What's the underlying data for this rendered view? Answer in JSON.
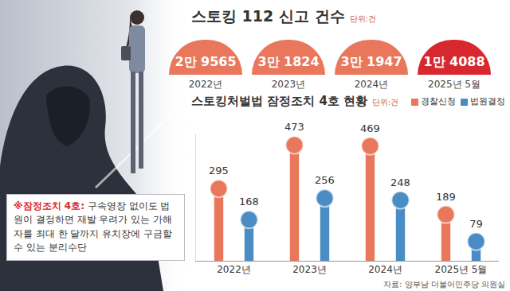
{
  "report_counts": {
    "title": "스토킹 112 신고 건수",
    "subtitle": "단위:건",
    "items": [
      {
        "year": "2022년",
        "count": "2만 9565",
        "color": "#e8775c"
      },
      {
        "year": "2023년",
        "count": "3만 1824",
        "color": "#e8775c"
      },
      {
        "year": "2024년",
        "count": "3만 1947",
        "color": "#e8775c"
      },
      {
        "year": "2025년 5월",
        "count": "1만 4088",
        "color": "#d7282f"
      }
    ]
  },
  "chart_data": {
    "type": "bar",
    "title": "스토킹처벌법 잠정조치 4호 현황",
    "subtitle": "단위:건",
    "categories": [
      "2022년",
      "2023년",
      "2024년",
      "2025년 5월"
    ],
    "series": [
      {
        "name": "경찰신청",
        "color": "#e8775c",
        "values": [
          295,
          473,
          469,
          189
        ]
      },
      {
        "name": "법원결정",
        "color": "#4a8cc4",
        "values": [
          168,
          256,
          248,
          79
        ]
      }
    ],
    "ylim": [
      0,
      520
    ],
    "grid": false,
    "data_labels": true,
    "tick_labels": "x",
    "legend": "top right",
    "marker": "circle"
  },
  "note": {
    "label": "※잠정조치 4호:",
    "text": "구속영장 없이도 법원이 결정하면 재발 우려가 있는 가해자를 최대 한 달까지 유치장에 구금할 수 있는 분리수단"
  },
  "source": "자료: 양부남 더불어민주당 의원실"
}
